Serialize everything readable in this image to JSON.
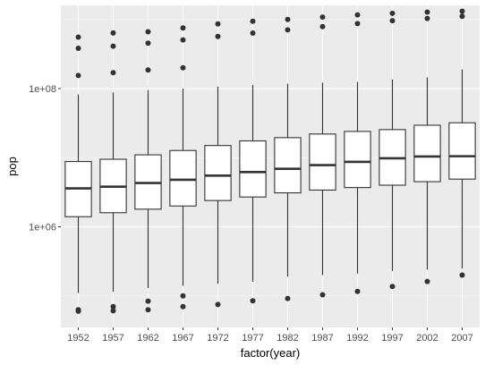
{
  "chart_data": {
    "type": "boxplot",
    "xlabel": "factor(year)",
    "ylabel": "pop",
    "yscale": "log10",
    "ylim": [
      35000,
      1600000000
    ],
    "y_ticks": [
      1000000,
      100000000
    ],
    "y_tick_labels": [
      "1e+06",
      "1e+08"
    ],
    "grid": true,
    "colors": {
      "panel": "#ebebeb",
      "grid_major": "#ffffff",
      "grid_minor": "#f5f5f5",
      "box_fill": "#ffffff",
      "box_line": "#333333",
      "outlier": "#333333"
    },
    "categories": [
      "1952",
      "1957",
      "1962",
      "1967",
      "1972",
      "1977",
      "1982",
      "1987",
      "1992",
      "1997",
      "2002",
      "2007"
    ],
    "boxes": [
      {
        "whisker_low": 110000,
        "q1": 1400000,
        "median": 3600000,
        "q3": 8800000,
        "whisker_high": 82000000,
        "outliers": [
          60000,
          63000,
          155000000,
          383000000,
          556000000
        ]
      },
      {
        "whisker_low": 115000,
        "q1": 1600000,
        "median": 3800000,
        "q3": 9500000,
        "whisker_high": 88000000,
        "outliers": [
          61000,
          70000,
          170000000,
          410000000,
          637000000
        ]
      },
      {
        "whisker_low": 130000,
        "q1": 1800000,
        "median": 4300000,
        "q3": 11000000,
        "whisker_high": 95000000,
        "outliers": [
          63000,
          84000,
          186000000,
          454000000,
          665000000
        ]
      },
      {
        "whisker_low": 140000,
        "q1": 2000000,
        "median": 4800000,
        "q3": 12700000,
        "whisker_high": 100000000,
        "outliers": [
          70000,
          100000,
          200000000,
          506000000,
          754000000
        ]
      },
      {
        "whisker_low": 150000,
        "q1": 2400000,
        "median": 5500000,
        "q3": 15000000,
        "whisker_high": 107000000,
        "outliers": [
          75000,
          567000000,
          862000000
        ]
      },
      {
        "whisker_low": 160000,
        "q1": 2700000,
        "median": 6200000,
        "q3": 17500000,
        "whisker_high": 113000000,
        "outliers": [
          85000,
          634000000,
          943000000
        ]
      },
      {
        "whisker_low": 190000,
        "q1": 3100000,
        "median": 6900000,
        "q3": 19500000,
        "whisker_high": 118000000,
        "outliers": [
          92000,
          708000000,
          1000000000
        ]
      },
      {
        "whisker_low": 200000,
        "q1": 3400000,
        "median": 7800000,
        "q3": 22000000,
        "whisker_high": 122000000,
        "outliers": [
          104000,
          788000000,
          1084000000
        ]
      },
      {
        "whisker_low": 210000,
        "q1": 3700000,
        "median": 8700000,
        "q3": 24000000,
        "whisker_high": 125000000,
        "outliers": [
          116000,
          872000000,
          1165000000
        ]
      },
      {
        "whisker_low": 230000,
        "q1": 4000000,
        "median": 9800000,
        "q3": 25500000,
        "whisker_high": 135000000,
        "outliers": [
          137000,
          959000000,
          1230000000
        ]
      },
      {
        "whisker_low": 240000,
        "q1": 4500000,
        "median": 10400000,
        "q3": 29500000,
        "whisker_high": 145000000,
        "outliers": [
          162000,
          1034000000,
          1280000000
        ]
      },
      {
        "whisker_low": 250000,
        "q1": 4900000,
        "median": 10500000,
        "q3": 32000000,
        "whisker_high": 190000000,
        "outliers": [
          200000,
          1110000000,
          1319000000
        ]
      }
    ]
  }
}
